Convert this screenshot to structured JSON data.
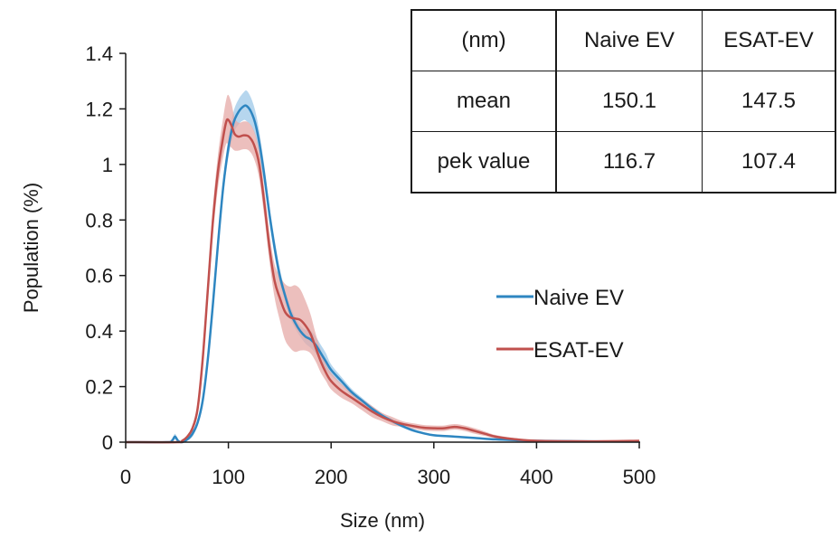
{
  "chart_data": {
    "type": "line",
    "xlabel": "Size (nm)",
    "ylabel": "Population (%)",
    "xlim": [
      0,
      500
    ],
    "ylim": [
      0,
      1.4
    ],
    "x_ticks": [
      "0",
      "100",
      "200",
      "300",
      "400",
      "500"
    ],
    "y_ticks": [
      "0",
      "0.2",
      "0.4",
      "0.6",
      "0.8",
      "1",
      "1.2",
      "1.4"
    ],
    "grid": false,
    "legend_position": "right",
    "series": [
      {
        "name": "Naive EV",
        "color": "#2e86c1",
        "band_color": "#9ec8e8",
        "x": [
          0,
          40,
          45,
          48,
          51,
          55,
          60,
          65,
          70,
          75,
          80,
          85,
          90,
          95,
          100,
          105,
          110,
          115,
          118,
          122,
          126,
          130,
          135,
          140,
          145,
          150,
          155,
          160,
          165,
          170,
          175,
          180,
          185,
          190,
          195,
          200,
          210,
          220,
          230,
          240,
          250,
          260,
          270,
          280,
          290,
          300,
          320,
          340,
          360,
          380,
          400,
          450,
          500
        ],
        "y": [
          0,
          0,
          0.005,
          0.02,
          0.005,
          0,
          0.01,
          0.03,
          0.07,
          0.15,
          0.3,
          0.5,
          0.72,
          0.92,
          1.06,
          1.15,
          1.19,
          1.21,
          1.21,
          1.19,
          1.15,
          1.08,
          0.96,
          0.82,
          0.7,
          0.6,
          0.53,
          0.47,
          0.43,
          0.4,
          0.38,
          0.37,
          0.35,
          0.32,
          0.29,
          0.26,
          0.22,
          0.18,
          0.15,
          0.12,
          0.095,
          0.075,
          0.057,
          0.042,
          0.032,
          0.025,
          0.02,
          0.015,
          0.01,
          0.007,
          0.005,
          0.003,
          0.002
        ],
        "band": [
          0,
          0,
          0.005,
          0.01,
          0.005,
          0,
          0.005,
          0.01,
          0.01,
          0.02,
          0.02,
          0.03,
          0.03,
          0.03,
          0.035,
          0.04,
          0.045,
          0.05,
          0.055,
          0.05,
          0.045,
          0.04,
          0.035,
          0.03,
          0.03,
          0.025,
          0.02,
          0.02,
          0.02,
          0.02,
          0.025,
          0.03,
          0.03,
          0.03,
          0.03,
          0.02,
          0.015,
          0.012,
          0.01,
          0.01,
          0.008,
          0.007,
          0.006,
          0.005,
          0.004,
          0.004,
          0.003,
          0.003,
          0.002,
          0.002,
          0.002,
          0.001,
          0.001
        ]
      },
      {
        "name": "ESAT-EV",
        "color": "#c0504d",
        "band_color": "#e6a9a7",
        "x": [
          0,
          50,
          55,
          60,
          65,
          70,
          75,
          80,
          85,
          90,
          95,
          98,
          100,
          103,
          106,
          110,
          115,
          120,
          125,
          130,
          135,
          140,
          145,
          150,
          155,
          160,
          165,
          170,
          175,
          180,
          185,
          190,
          195,
          200,
          210,
          220,
          230,
          240,
          250,
          260,
          270,
          280,
          290,
          300,
          310,
          320,
          330,
          340,
          350,
          360,
          380,
          400,
          450,
          500
        ],
        "y": [
          0,
          0,
          0.005,
          0.02,
          0.05,
          0.12,
          0.3,
          0.55,
          0.8,
          0.98,
          1.1,
          1.155,
          1.16,
          1.14,
          1.11,
          1.1,
          1.105,
          1.1,
          1.07,
          1.0,
          0.86,
          0.7,
          0.58,
          0.52,
          0.47,
          0.45,
          0.445,
          0.44,
          0.42,
          0.39,
          0.34,
          0.29,
          0.25,
          0.22,
          0.185,
          0.16,
          0.135,
          0.11,
          0.09,
          0.075,
          0.065,
          0.058,
          0.052,
          0.05,
          0.05,
          0.055,
          0.05,
          0.04,
          0.03,
          0.02,
          0.01,
          0.005,
          0.003,
          0.005
        ],
        "band": [
          0,
          0,
          0.005,
          0.005,
          0.01,
          0.02,
          0.03,
          0.04,
          0.05,
          0.06,
          0.07,
          0.08,
          0.09,
          0.08,
          0.06,
          0.05,
          0.05,
          0.05,
          0.05,
          0.05,
          0.05,
          0.05,
          0.06,
          0.08,
          0.1,
          0.11,
          0.12,
          0.11,
          0.09,
          0.07,
          0.05,
          0.04,
          0.03,
          0.03,
          0.025,
          0.02,
          0.02,
          0.02,
          0.015,
          0.015,
          0.01,
          0.01,
          0.01,
          0.01,
          0.01,
          0.01,
          0.01,
          0.01,
          0.008,
          0.006,
          0.004,
          0.003,
          0.002,
          0.002
        ]
      }
    ]
  },
  "stats_table": {
    "header": [
      "(nm)",
      "Naive EV",
      "ESAT-EV"
    ],
    "rows": [
      [
        "mean",
        "150.1",
        "147.5"
      ],
      [
        "pek value",
        "116.7",
        "107.4"
      ]
    ]
  }
}
